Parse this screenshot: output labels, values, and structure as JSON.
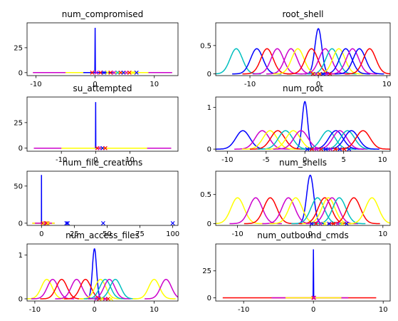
{
  "chart_data": [
    {
      "title": "num_compromised",
      "type": "line",
      "xlim": [
        -11.5,
        14
      ],
      "ylim": [
        -3,
        50
      ],
      "xticks": [
        -10,
        0,
        10
      ],
      "yticks": [
        0,
        25
      ],
      "spikes": [
        {
          "x": 0,
          "height": 45,
          "color": "#0000ff"
        }
      ],
      "curves": [],
      "flat": [
        {
          "x0": -10.5,
          "x1": 13,
          "color": "#ff0000"
        },
        {
          "x0": -10.5,
          "x1": 13,
          "color": "#cc00cc"
        },
        {
          "x0": -5,
          "x1": 9,
          "color": "#ffff00"
        },
        {
          "x0": -2,
          "x1": 3,
          "color": "#0000ff"
        }
      ],
      "markers": [
        {
          "x": -0.5,
          "color": "#ff0000"
        },
        {
          "x": 0.2,
          "color": "#cc00cc"
        },
        {
          "x": 0.9,
          "color": "#ff0000"
        },
        {
          "x": 1.5,
          "color": "#0000ff"
        },
        {
          "x": 2.1,
          "color": "#ffff00"
        },
        {
          "x": 2.6,
          "color": "#ff0000"
        },
        {
          "x": 3.2,
          "color": "#cc00cc"
        },
        {
          "x": 3.8,
          "color": "#00bfbf"
        },
        {
          "x": 4.3,
          "color": "#ff0000"
        },
        {
          "x": 4.8,
          "color": "#0000ff"
        },
        {
          "x": 5.3,
          "color": "#cc00cc"
        },
        {
          "x": 5.8,
          "color": "#ff0000"
        },
        {
          "x": 6.4,
          "color": "#ffff00"
        },
        {
          "x": 7.0,
          "color": "#0000ff"
        }
      ]
    },
    {
      "title": "root_shell",
      "type": "line",
      "xlim": [
        -15,
        10.5
      ],
      "ylim": [
        -0.03,
        0.9
      ],
      "xticks": [
        -10,
        0,
        10
      ],
      "yticks": [
        0.0,
        0.5
      ],
      "spikes": [],
      "curves": [
        {
          "mu": 0,
          "sigma": 0.5,
          "color": "#0000ff"
        },
        {
          "mu": -12,
          "sigma": 0.9,
          "color": "#00bfbf"
        },
        {
          "mu": -9,
          "sigma": 0.9,
          "color": "#0000ff"
        },
        {
          "mu": -7.5,
          "sigma": 0.9,
          "color": "#ff0000"
        },
        {
          "mu": -6,
          "sigma": 0.9,
          "color": "#cc00cc"
        },
        {
          "mu": -4,
          "sigma": 0.9,
          "color": "#cc00cc"
        },
        {
          "mu": -3,
          "sigma": 0.9,
          "color": "#ffff00"
        },
        {
          "mu": -1,
          "sigma": 0.9,
          "color": "#ff0000"
        },
        {
          "mu": 1,
          "sigma": 0.9,
          "color": "#cc00cc"
        },
        {
          "mu": 2,
          "sigma": 0.9,
          "color": "#00bfbf"
        },
        {
          "mu": 3,
          "sigma": 0.9,
          "color": "#ffff00"
        },
        {
          "mu": 4,
          "sigma": 0.9,
          "color": "#0000ff"
        },
        {
          "mu": 5,
          "sigma": 0.9,
          "color": "#cc00cc"
        },
        {
          "mu": 6,
          "sigma": 0.9,
          "color": "#0000ff"
        },
        {
          "mu": 7.5,
          "sigma": 0.9,
          "color": "#ff0000"
        }
      ],
      "flat": [],
      "markers": [
        {
          "x": -0.8,
          "color": "#ff0000"
        },
        {
          "x": -0.3,
          "color": "#cc00cc"
        },
        {
          "x": 0.2,
          "color": "#ff0000"
        },
        {
          "x": 0.7,
          "color": "#0000ff"
        },
        {
          "x": 1.2,
          "color": "#cc00cc"
        },
        {
          "x": 1.7,
          "color": "#ff0000"
        }
      ]
    },
    {
      "title": "su_attempted",
      "type": "line",
      "xlim": [
        -20,
        24
      ],
      "ylim": [
        -3,
        50
      ],
      "xticks": [
        -10,
        0,
        10
      ],
      "yticks": [
        0,
        25
      ],
      "spikes": [
        {
          "x": 0,
          "height": 45,
          "color": "#0000ff"
        }
      ],
      "curves": [],
      "flat": [
        {
          "x0": -18,
          "x1": 22,
          "color": "#ff0000"
        },
        {
          "x0": -18,
          "x1": 22,
          "color": "#cc00cc"
        },
        {
          "x0": -10,
          "x1": 15,
          "color": "#ffff00"
        }
      ],
      "markers": [
        {
          "x": 0.5,
          "color": "#ff0000"
        },
        {
          "x": 1.2,
          "color": "#cc00cc"
        },
        {
          "x": 2.0,
          "color": "#0000ff"
        },
        {
          "x": 2.8,
          "color": "#ff0000"
        }
      ]
    },
    {
      "title": "num_root",
      "type": "line",
      "xlim": [
        -11.5,
        11
      ],
      "ylim": [
        -0.05,
        1.25
      ],
      "xticks": [
        -10,
        -5,
        0,
        5,
        10
      ],
      "yticks": [
        0,
        1
      ],
      "spikes": [],
      "curves": [
        {
          "mu": 0,
          "sigma": 0.35,
          "color": "#0000ff"
        },
        {
          "mu": -8,
          "sigma": 0.9,
          "color": "#0000ff"
        },
        {
          "mu": -5.5,
          "sigma": 0.9,
          "color": "#cc00cc"
        },
        {
          "mu": -4.5,
          "sigma": 0.9,
          "color": "#ffff00"
        },
        {
          "mu": -3.5,
          "sigma": 0.9,
          "color": "#ff0000"
        },
        {
          "mu": -2.5,
          "sigma": 0.9,
          "color": "#00bfbf"
        },
        {
          "mu": -1.5,
          "sigma": 0.9,
          "color": "#ffff00"
        },
        {
          "mu": -0.5,
          "sigma": 0.9,
          "color": "#cc00cc"
        },
        {
          "mu": 3,
          "sigma": 0.9,
          "color": "#00bfbf"
        },
        {
          "mu": 4,
          "sigma": 0.9,
          "color": "#0000ff"
        },
        {
          "mu": 4.5,
          "sigma": 0.9,
          "color": "#cc00cc"
        },
        {
          "mu": 5.5,
          "sigma": 0.9,
          "color": "#00bfbf"
        },
        {
          "mu": 6,
          "sigma": 0.9,
          "color": "#0000ff"
        },
        {
          "mu": 7.5,
          "sigma": 0.9,
          "color": "#ff0000"
        }
      ],
      "flat": [],
      "markers": [
        {
          "x": 0.3,
          "color": "#0000ff"
        },
        {
          "x": 0.9,
          "color": "#ff0000"
        },
        {
          "x": 1.5,
          "color": "#cc00cc"
        },
        {
          "x": 2.1,
          "color": "#ff0000"
        },
        {
          "x": 2.7,
          "color": "#0000ff"
        },
        {
          "x": 3.3,
          "color": "#cc00cc"
        },
        {
          "x": 3.9,
          "color": "#ff0000"
        },
        {
          "x": 4.5,
          "color": "#0000ff"
        },
        {
          "x": 5.1,
          "color": "#ff0000"
        },
        {
          "x": 5.7,
          "color": "#0000ff"
        }
      ]
    },
    {
      "title": "num_file_creations",
      "type": "line",
      "xlim": [
        -11,
        104
      ],
      "ylim": [
        -3,
        70
      ],
      "xticks": [
        0,
        25,
        50,
        75,
        100
      ],
      "yticks": [
        0,
        50
      ],
      "spikes": [
        {
          "x": 0,
          "height": 65,
          "color": "#0000ff"
        }
      ],
      "curves": [],
      "flat": [
        {
          "x0": -7,
          "x1": 10,
          "color": "#ff0000"
        },
        {
          "x0": -7,
          "x1": 10,
          "color": "#ffff00"
        },
        {
          "x0": -5,
          "x1": 8,
          "color": "#cc00cc"
        }
      ],
      "markers": [
        {
          "x": 1,
          "color": "#ff0000"
        },
        {
          "x": 2,
          "color": "#ffff00"
        },
        {
          "x": 3,
          "color": "#cc00cc"
        },
        {
          "x": 4,
          "color": "#ff0000"
        },
        {
          "x": 5,
          "color": "#ffff00"
        },
        {
          "x": 19,
          "color": "#0000ff"
        },
        {
          "x": 20,
          "color": "#0000ff"
        },
        {
          "x": 47,
          "color": "#0000ff"
        },
        {
          "x": 100,
          "color": "#0000ff"
        }
      ]
    },
    {
      "title": "num_shells",
      "type": "line",
      "xlim": [
        -13,
        11
      ],
      "ylim": [
        -0.03,
        0.9
      ],
      "xticks": [
        -10,
        0,
        10
      ],
      "yticks": [
        0.0,
        0.5
      ],
      "spikes": [],
      "curves": [
        {
          "mu": 0,
          "sigma": 0.48,
          "color": "#0000ff"
        },
        {
          "mu": -10,
          "sigma": 0.9,
          "color": "#ffff00"
        },
        {
          "mu": -7.5,
          "sigma": 0.9,
          "color": "#cc00cc"
        },
        {
          "mu": -5.5,
          "sigma": 0.9,
          "color": "#ff0000"
        },
        {
          "mu": -3,
          "sigma": 0.9,
          "color": "#cc00cc"
        },
        {
          "mu": -2,
          "sigma": 0.9,
          "color": "#ffff00"
        },
        {
          "mu": 1,
          "sigma": 0.9,
          "color": "#00bfbf"
        },
        {
          "mu": 2,
          "sigma": 0.9,
          "color": "#ff0000"
        },
        {
          "mu": 2.5,
          "sigma": 0.9,
          "color": "#ffff00"
        },
        {
          "mu": 3,
          "sigma": 0.9,
          "color": "#cc00cc"
        },
        {
          "mu": 4,
          "sigma": 0.9,
          "color": "#00bfbf"
        },
        {
          "mu": 6,
          "sigma": 0.9,
          "color": "#ff0000"
        },
        {
          "mu": 8.5,
          "sigma": 0.9,
          "color": "#ffff00"
        }
      ],
      "flat": [],
      "markers": [
        {
          "x": 0.2,
          "color": "#0000ff"
        },
        {
          "x": 0.8,
          "color": "#ff0000"
        },
        {
          "x": 1.4,
          "color": "#cc00cc"
        },
        {
          "x": 2.0,
          "color": "#ffff00"
        },
        {
          "x": 2.6,
          "color": "#0000ff"
        },
        {
          "x": 3.2,
          "color": "#ff0000"
        },
        {
          "x": 3.8,
          "color": "#cc00cc"
        },
        {
          "x": 4.4,
          "color": "#ffff00"
        },
        {
          "x": 5.0,
          "color": "#0000ff"
        }
      ]
    },
    {
      "title": "num_access_files",
      "type": "line",
      "xlim": [
        -11.3,
        14
      ],
      "ylim": [
        -0.05,
        1.25
      ],
      "xticks": [
        -10,
        0,
        10
      ],
      "yticks": [
        0,
        1
      ],
      "spikes": [],
      "curves": [
        {
          "mu": 0,
          "sigma": 0.35,
          "color": "#0000ff"
        },
        {
          "mu": -8,
          "sigma": 0.9,
          "color": "#ffff00"
        },
        {
          "mu": -7,
          "sigma": 0.9,
          "color": "#cc00cc"
        },
        {
          "mu": -5.5,
          "sigma": 0.9,
          "color": "#ff0000"
        },
        {
          "mu": -3,
          "sigma": 0.9,
          "color": "#cc00cc"
        },
        {
          "mu": -1.5,
          "sigma": 0.9,
          "color": "#ff0000"
        },
        {
          "mu": 1,
          "sigma": 0.9,
          "color": "#ffff00"
        },
        {
          "mu": 1.8,
          "sigma": 0.9,
          "color": "#00bfbf"
        },
        {
          "mu": 2.5,
          "sigma": 0.9,
          "color": "#cc00cc"
        },
        {
          "mu": 3.5,
          "sigma": 0.9,
          "color": "#00bfbf"
        },
        {
          "mu": 10,
          "sigma": 0.9,
          "color": "#ffff00"
        },
        {
          "mu": 12,
          "sigma": 0.9,
          "color": "#cc00cc"
        }
      ],
      "flat": [],
      "markers": [
        {
          "x": 0.3,
          "color": "#cc00cc"
        },
        {
          "x": 0.8,
          "color": "#ff0000"
        },
        {
          "x": 1.3,
          "color": "#ffff00"
        },
        {
          "x": 1.8,
          "color": "#cc00cc"
        },
        {
          "x": 2.3,
          "color": "#ff0000"
        },
        {
          "x": 2.8,
          "color": "#ffff00"
        }
      ]
    },
    {
      "title": "num_outbound_cmds",
      "type": "line",
      "xlim": [
        -14,
        11
      ],
      "ylim": [
        -3,
        50
      ],
      "xticks": [
        -10,
        0,
        10
      ],
      "yticks": [
        0,
        25
      ],
      "spikes": [
        {
          "x": 0,
          "height": 45,
          "color": "#0000ff"
        }
      ],
      "curves": [],
      "flat": [
        {
          "x0": -13,
          "x1": 9,
          "color": "#ff0000"
        },
        {
          "x0": -6,
          "x1": 5,
          "color": "#cc00cc"
        },
        {
          "x0": -4,
          "x1": 4,
          "color": "#ffff00"
        }
      ],
      "markers": [
        {
          "x": 0,
          "color": "#ff0000"
        },
        {
          "x": 0.1,
          "color": "#cc00cc"
        }
      ]
    }
  ]
}
